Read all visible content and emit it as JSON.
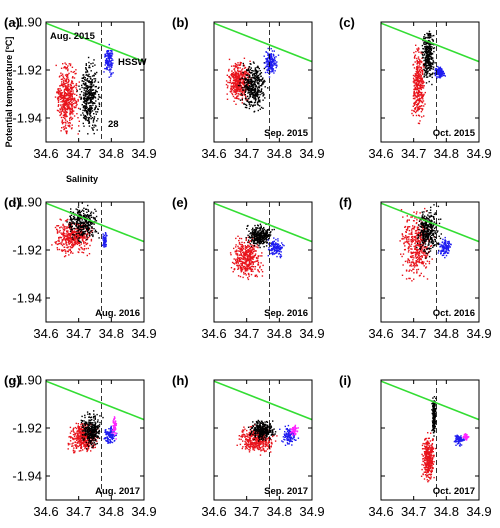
{
  "figure": {
    "xlabel": "Salinity",
    "ylabel": "Potential temperature [ºC]"
  },
  "colors": {
    "red": "#e8131b",
    "black": "#000000",
    "blue": "#1f1cf0",
    "magenta": "#ff22ff",
    "green": "#33dd33"
  },
  "chart_data": [
    {
      "label": "(a)",
      "type": "scatter",
      "month_label": "Aug. 2015",
      "annotations": [
        "HSSW",
        "28"
      ],
      "xlabel": "Salinity",
      "ylabel": "Potential temperature [ºC]",
      "xlim": [
        34.6,
        34.9
      ],
      "ylim": [
        -1.95,
        -1.9
      ],
      "xticks": [
        "34.6",
        "34.7",
        "34.8",
        "34.9"
      ],
      "yticks": [
        "-1.90",
        "-1.92",
        "-1.94"
      ],
      "show_xticks": true,
      "show_yticks": true,
      "dashed_x": 34.77,
      "green_line": [
        [
          34.6,
          -1.9005
        ],
        [
          34.9,
          -1.9165
        ]
      ],
      "clusters": [
        {
          "color": "red",
          "x": [
            34.62,
            34.71
          ],
          "y": [
            -1.95,
            -1.913
          ],
          "n": 460
        },
        {
          "color": "black",
          "x": [
            34.695,
            34.77
          ],
          "y": [
            -1.95,
            -1.912
          ],
          "n": 380
        },
        {
          "color": "blue",
          "x": [
            34.775,
            34.81
          ],
          "y": [
            -1.924,
            -1.908
          ],
          "n": 150
        }
      ]
    },
    {
      "label": "(b)",
      "type": "scatter",
      "month_label": "Sep. 2015",
      "annotations": [],
      "xlim": [
        34.6,
        34.9
      ],
      "ylim": [
        -1.95,
        -1.9
      ],
      "xticks": [
        "34.6",
        "34.7",
        "34.8",
        "34.9"
      ],
      "yticks": [
        "-1.90",
        "-1.92",
        "-1.94"
      ],
      "show_xticks": true,
      "show_yticks": false,
      "dashed_x": 34.77,
      "green_line": [
        [
          34.6,
          -1.9005
        ],
        [
          34.9,
          -1.9165
        ]
      ],
      "clusters": [
        {
          "color": "red",
          "x": [
            34.63,
            34.72
          ],
          "y": [
            -1.936,
            -1.914
          ],
          "n": 400
        },
        {
          "color": "black",
          "x": [
            34.67,
            34.77
          ],
          "y": [
            -1.94,
            -1.914
          ],
          "n": 380
        },
        {
          "color": "blue",
          "x": [
            34.75,
            34.8
          ],
          "y": [
            -1.924,
            -1.91
          ],
          "n": 160
        }
      ]
    },
    {
      "label": "(c)",
      "type": "scatter",
      "month_label": "Oct. 2015",
      "annotations": [],
      "xlim": [
        34.6,
        34.9
      ],
      "ylim": [
        -1.95,
        -1.9
      ],
      "xticks": [
        "34.6",
        "34.7",
        "34.8",
        "34.9"
      ],
      "yticks": [
        "-1.90",
        "-1.92",
        "-1.94"
      ],
      "show_xticks": true,
      "show_yticks": false,
      "dashed_x": 34.77,
      "green_line": [
        [
          34.6,
          -1.9005
        ],
        [
          34.9,
          -1.9165
        ]
      ],
      "clusters": [
        {
          "color": "red",
          "x": [
            34.69,
            34.74
          ],
          "y": [
            -1.947,
            -1.905
          ],
          "n": 340
        },
        {
          "color": "black",
          "x": [
            34.72,
            34.77
          ],
          "y": [
            -1.928,
            -1.9
          ],
          "n": 320
        },
        {
          "color": "blue",
          "x": [
            34.76,
            34.8
          ],
          "y": [
            -1.924,
            -1.918
          ],
          "n": 110
        }
      ]
    },
    {
      "label": "(d)",
      "type": "scatter",
      "month_label": "Aug. 2016",
      "annotations": [],
      "xlim": [
        34.6,
        34.9
      ],
      "ylim": [
        -1.95,
        -1.9
      ],
      "xticks": [
        "34.6",
        "34.7",
        "34.8",
        "34.9"
      ],
      "yticks": [
        "-1.90",
        "-1.92",
        "-1.94"
      ],
      "show_xticks": true,
      "show_yticks": true,
      "dashed_x": 34.77,
      "green_line": [
        [
          34.6,
          -1.9005
        ],
        [
          34.9,
          -1.9165
        ]
      ],
      "clusters": [
        {
          "color": "red",
          "x": [
            34.61,
            34.76
          ],
          "y": [
            -1.924,
            -1.905
          ],
          "n": 420
        },
        {
          "color": "black",
          "x": [
            34.65,
            34.77
          ],
          "y": [
            -1.918,
            -1.9
          ],
          "n": 320
        },
        {
          "color": "blue",
          "x": [
            34.77,
            34.79
          ],
          "y": [
            -1.92,
            -1.912
          ],
          "n": 60
        }
      ]
    },
    {
      "label": "(e)",
      "type": "scatter",
      "month_label": "Sep. 2016",
      "annotations": [],
      "xlim": [
        34.6,
        34.9
      ],
      "ylim": [
        -1.95,
        -1.9
      ],
      "xticks": [
        "34.6",
        "34.7",
        "34.8",
        "34.9"
      ],
      "yticks": [
        "-1.90",
        "-1.92",
        "-1.94"
      ],
      "show_xticks": true,
      "show_yticks": false,
      "dashed_x": 34.77,
      "green_line": [
        [
          34.6,
          -1.9005
        ],
        [
          34.9,
          -1.9165
        ]
      ],
      "clusters": [
        {
          "color": "red",
          "x": [
            34.64,
            34.76
          ],
          "y": [
            -1.935,
            -1.912
          ],
          "n": 400
        },
        {
          "color": "black",
          "x": [
            34.69,
            34.79
          ],
          "y": [
            -1.92,
            -1.908
          ],
          "n": 300
        },
        {
          "color": "blue",
          "x": [
            34.76,
            34.82
          ],
          "y": [
            -1.924,
            -1.914
          ],
          "n": 120
        }
      ]
    },
    {
      "label": "(f)",
      "type": "scatter",
      "month_label": "Oct. 2016",
      "annotations": [],
      "xlim": [
        34.6,
        34.9
      ],
      "ylim": [
        -1.95,
        -1.9
      ],
      "xticks": [
        "34.6",
        "34.7",
        "34.8",
        "34.9"
      ],
      "yticks": [
        "-1.90",
        "-1.92",
        "-1.94"
      ],
      "show_xticks": true,
      "show_yticks": false,
      "dashed_x": 34.77,
      "green_line": [
        [
          34.6,
          -1.9005
        ],
        [
          34.9,
          -1.9165
        ]
      ],
      "clusters": [
        {
          "color": "red",
          "x": [
            34.65,
            34.77
          ],
          "y": [
            -1.936,
            -1.9
          ],
          "n": 420
        },
        {
          "color": "black",
          "x": [
            34.7,
            34.79
          ],
          "y": [
            -1.925,
            -1.9
          ],
          "n": 340
        },
        {
          "color": "blue",
          "x": [
            34.77,
            34.82
          ],
          "y": [
            -1.924,
            -1.914
          ],
          "n": 110
        }
      ]
    },
    {
      "label": "(g)",
      "type": "scatter",
      "month_label": "Aug. 2017",
      "annotations": [],
      "xlim": [
        34.6,
        34.9
      ],
      "ylim": [
        -1.95,
        -1.9
      ],
      "xticks": [
        "34.6",
        "34.7",
        "34.8",
        "34.9"
      ],
      "yticks": [
        "-1.90",
        "-1.92",
        "-1.94"
      ],
      "show_xticks": true,
      "show_yticks": true,
      "dashed_x": 34.77,
      "green_line": [
        [
          34.6,
          -1.9005
        ],
        [
          34.9,
          -1.9165
        ]
      ],
      "clusters": [
        {
          "color": "red",
          "x": [
            34.66,
            34.77
          ],
          "y": [
            -1.932,
            -1.916
          ],
          "n": 380
        },
        {
          "color": "black",
          "x": [
            34.7,
            34.78
          ],
          "y": [
            -1.93,
            -1.912
          ],
          "n": 300
        },
        {
          "color": "blue",
          "x": [
            34.77,
            34.82
          ],
          "y": [
            -1.928,
            -1.918
          ],
          "n": 110
        },
        {
          "color": "magenta",
          "x": [
            34.8,
            34.82
          ],
          "y": [
            -1.926,
            -1.914
          ],
          "n": 50
        }
      ]
    },
    {
      "label": "(h)",
      "type": "scatter",
      "month_label": "Sep. 2017",
      "annotations": [],
      "xlim": [
        34.6,
        34.9
      ],
      "ylim": [
        -1.95,
        -1.9
      ],
      "xticks": [
        "34.6",
        "34.7",
        "34.8",
        "34.9"
      ],
      "yticks": [
        "-1.90",
        "-1.92",
        "-1.94"
      ],
      "show_xticks": true,
      "show_yticks": false,
      "dashed_x": 34.77,
      "green_line": [
        [
          34.6,
          -1.9005
        ],
        [
          34.9,
          -1.9165
        ]
      ],
      "clusters": [
        {
          "color": "red",
          "x": [
            34.66,
            34.8
          ],
          "y": [
            -1.932,
            -1.918
          ],
          "n": 380
        },
        {
          "color": "black",
          "x": [
            34.7,
            34.8
          ],
          "y": [
            -1.926,
            -1.916
          ],
          "n": 300
        },
        {
          "color": "blue",
          "x": [
            34.8,
            34.86
          ],
          "y": [
            -1.928,
            -1.918
          ],
          "n": 110
        },
        {
          "color": "magenta",
          "x": [
            34.83,
            34.86
          ],
          "y": [
            -1.924,
            -1.918
          ],
          "n": 50
        }
      ]
    },
    {
      "label": "(i)",
      "type": "scatter",
      "month_label": "Oct. 2017",
      "annotations": [],
      "xlim": [
        34.6,
        34.9
      ],
      "ylim": [
        -1.95,
        -1.9
      ],
      "xticks": [
        "34.6",
        "34.7",
        "34.8",
        "34.9"
      ],
      "yticks": [
        "-1.90",
        "-1.92",
        "-1.94"
      ],
      "show_xticks": true,
      "show_yticks": false,
      "dashed_x": 34.77,
      "green_line": [
        [
          34.6,
          -1.9005
        ],
        [
          34.9,
          -1.9165
        ]
      ],
      "clusters": [
        {
          "color": "red",
          "x": [
            34.72,
            34.77
          ],
          "y": [
            -1.945,
            -1.92
          ],
          "n": 320
        },
        {
          "color": "black",
          "x": [
            34.755,
            34.77
          ],
          "y": [
            -1.925,
            -1.905
          ],
          "n": 200
        },
        {
          "color": "blue",
          "x": [
            34.82,
            34.86
          ],
          "y": [
            -1.928,
            -1.922
          ],
          "n": 80
        },
        {
          "color": "magenta",
          "x": [
            34.85,
            34.87
          ],
          "y": [
            -1.926,
            -1.922
          ],
          "n": 40
        }
      ]
    }
  ]
}
